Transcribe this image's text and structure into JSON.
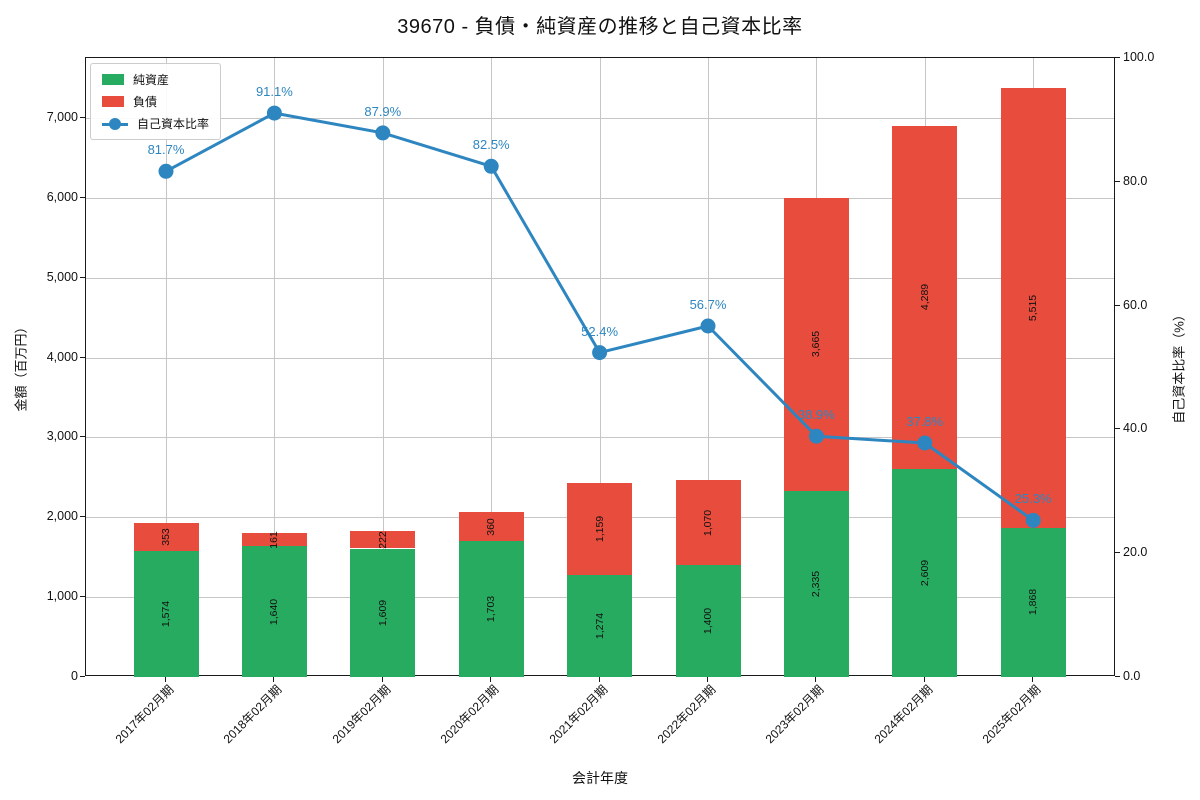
{
  "title": "39670 - 負債・純資産の推移と自己資本比率",
  "xlabel": "会計年度",
  "ylabel_left": "金額（百万円）",
  "ylabel_right": "自己資本比率（%）",
  "colors": {
    "equity": "#27ab60",
    "liabilities": "#e84c3d",
    "ratio_line": "#2e86c1",
    "grid": "#c6c6c6",
    "spine": "#1a1a1a",
    "bar_label": "#111111"
  },
  "legend": {
    "position": "upper left",
    "items": [
      "純資産",
      "負債",
      "自己資本比率"
    ]
  },
  "chart_data": {
    "type": "bar",
    "subtype": "stacked-bar-with-line",
    "title": "39670 - 負債・純資産の推移と自己資本比率",
    "xlabel": "会計年度",
    "ylabel_left": "金額（百万円）",
    "ylabel_right": "自己資本比率（%）",
    "categories": [
      "2017年02月期",
      "2018年02月期",
      "2019年02月期",
      "2020年02月期",
      "2021年02月期",
      "2022年02月期",
      "2023年02月期",
      "2024年02月期",
      "2025年02月期"
    ],
    "series": [
      {
        "name": "純資産",
        "type": "bar",
        "stack": true,
        "axis": "left",
        "color": "#27ab60",
        "values": [
          1574,
          1640,
          1609,
          1703,
          1274,
          1400,
          2335,
          2609,
          1868
        ]
      },
      {
        "name": "負債",
        "type": "bar",
        "stack": true,
        "axis": "left",
        "color": "#e84c3d",
        "values": [
          353,
          161,
          222,
          360,
          1159,
          1070,
          3665,
          4289,
          5515
        ]
      },
      {
        "name": "自己資本比率",
        "type": "line",
        "axis": "right",
        "color": "#2e86c1",
        "values": [
          81.7,
          91.1,
          87.9,
          82.5,
          52.4,
          56.7,
          38.9,
          37.8,
          25.3
        ],
        "labels": [
          "81.7%",
          "91.1%",
          "87.9%",
          "82.5%",
          "52.4%",
          "56.7%",
          "38.9%",
          "37.8%",
          "25.3%"
        ]
      }
    ],
    "ylim_left": [
      0,
      7752
    ],
    "ylim_right": [
      0.0,
      100.0
    ],
    "yticks_left": [
      0,
      1000,
      2000,
      3000,
      4000,
      5000,
      6000,
      7000
    ],
    "yticks_right": [
      0.0,
      20.0,
      40.0,
      60.0,
      80.0,
      100.0
    ],
    "grid": true,
    "legend_position": "upper left"
  }
}
